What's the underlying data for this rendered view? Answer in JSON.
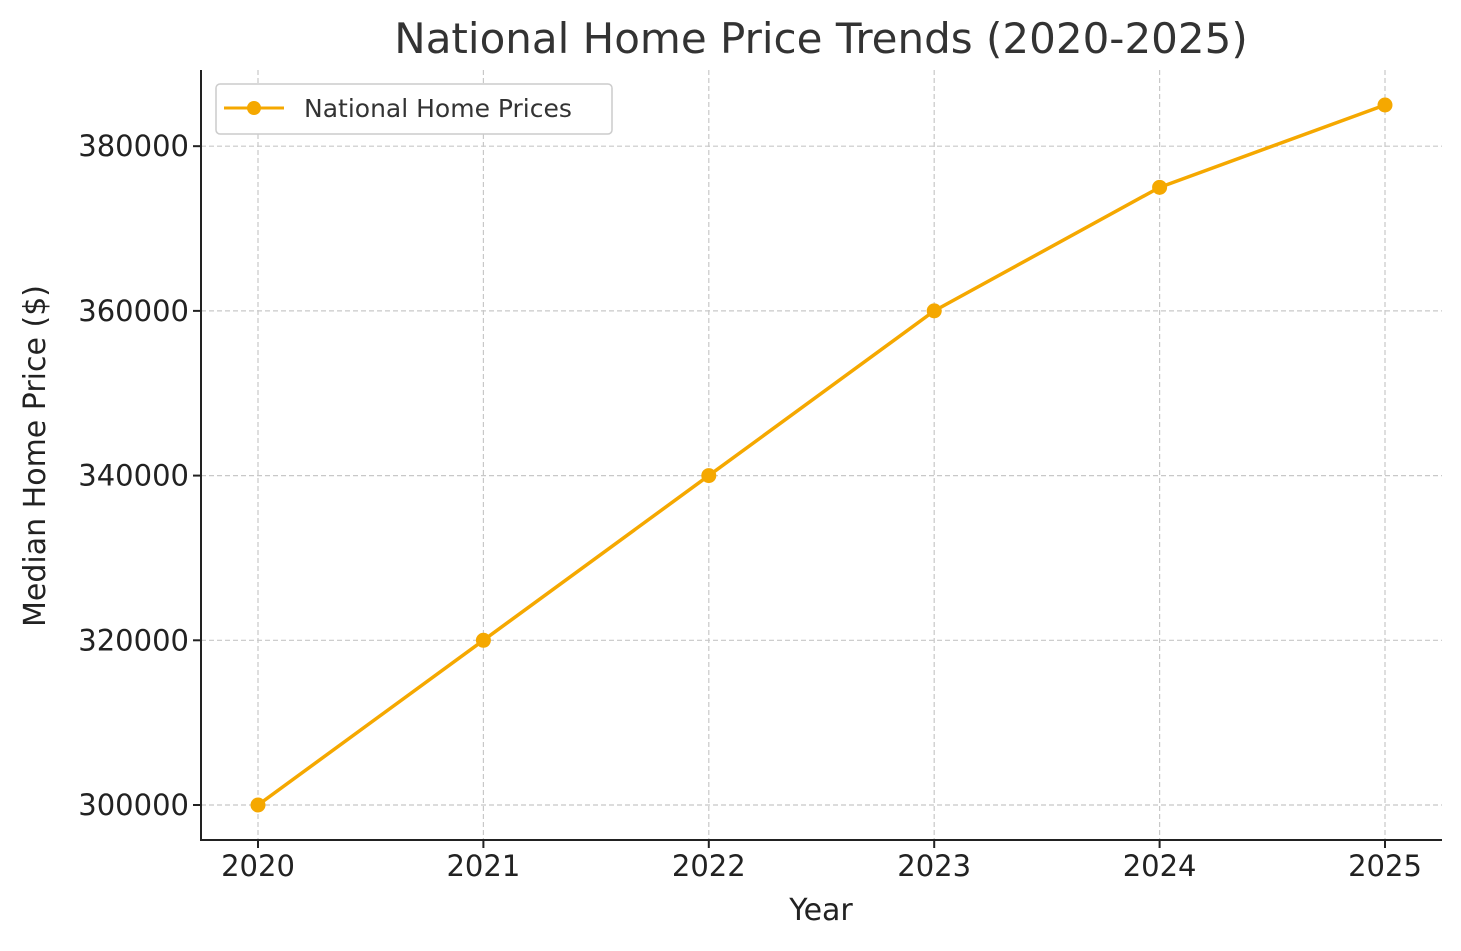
{
  "chart_data": {
    "type": "line",
    "title": "National Home Price Trends (2020-2025)",
    "xlabel": "Year",
    "ylabel": "Median Home Price ($)",
    "x": [
      "2020",
      "2021",
      "2022",
      "2023",
      "2024",
      "2025"
    ],
    "series": [
      {
        "name": "National Home Prices",
        "values": [
          300000,
          320000,
          340000,
          360000,
          375000,
          385000
        ],
        "color": "#F5A800",
        "marker": "circle"
      }
    ],
    "yticks": [
      "300000",
      "320000",
      "340000",
      "360000",
      "380000"
    ],
    "ylim": [
      295750,
      389250
    ],
    "grid": true,
    "grid_style": "dashed",
    "legend_position": "top-left"
  }
}
